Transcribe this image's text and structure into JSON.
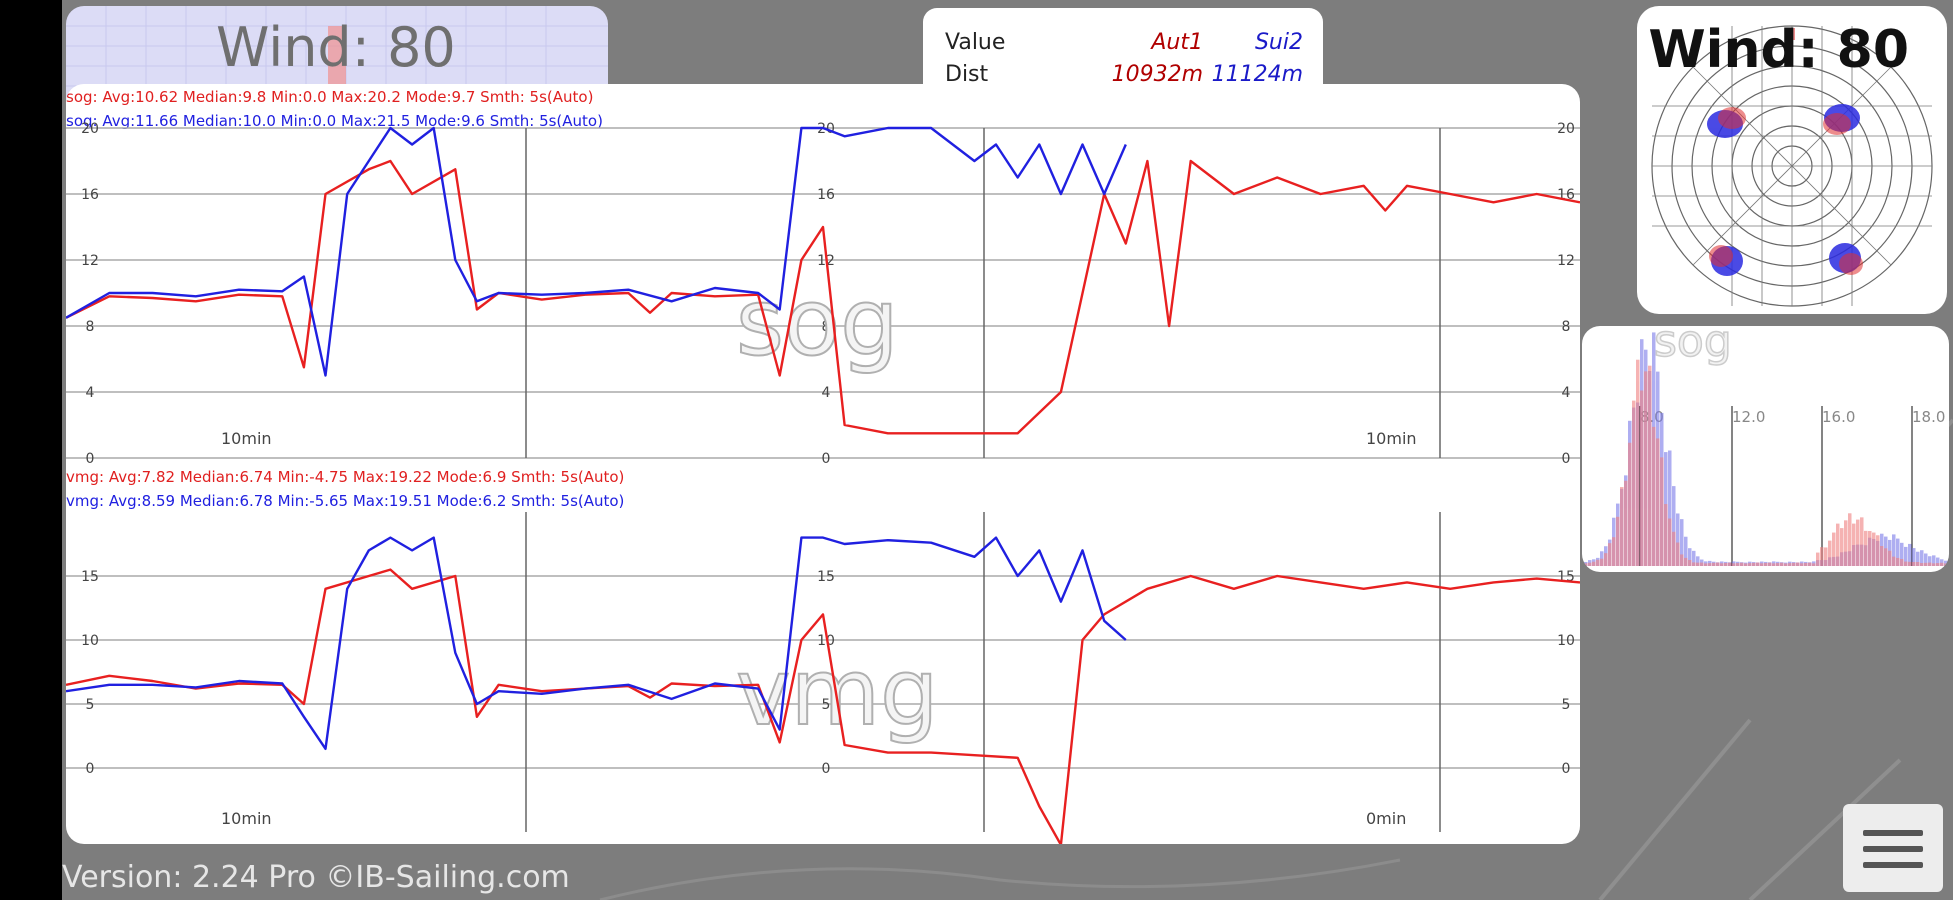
{
  "wind_panel": {
    "label": "Wind: 80"
  },
  "value_table": {
    "header": {
      "col0": "Value",
      "col1": "Aut1",
      "col2": "Sui2"
    },
    "row": {
      "col0": "Dist",
      "col1": "10932m",
      "col2": "11124m"
    }
  },
  "polar": {
    "title": "Wind: 80"
  },
  "histogram": {
    "watermark": "sog",
    "ticks": [
      "8.0",
      "12.0",
      "16.0",
      "18.0"
    ]
  },
  "sog_chart": {
    "watermark": "sog",
    "stats_red": "sog:  Avg:10.62 Median:9.8 Min:0.0 Max:20.2 Mode:9.7 Smth: 5s(Auto)",
    "stats_blue": "sog:  Avg:11.66 Median:10.0 Min:0.0 Max:21.5 Mode:9.6 Smth: 5s(Auto)",
    "y_ticks": [
      "20",
      "16",
      "12",
      "8",
      "4",
      "0"
    ],
    "time_label_left": "10min",
    "time_label_right": "10min"
  },
  "vmg_chart": {
    "watermark": "vmg",
    "stats_red": "vmg:  Avg:7.82 Median:6.74 Min:-4.75 Max:19.22 Mode:6.9 Smth: 5s(Auto)",
    "stats_blue": "vmg:  Avg:8.59 Median:6.78 Min:-5.65 Max:19.51 Mode:6.2 Smth: 5s(Auto)",
    "y_ticks": [
      "15",
      "10",
      "5",
      "0"
    ],
    "time_label_left": "10min",
    "time_label_right": "0min"
  },
  "footer": {
    "version": "Version: 2.24 Pro ©IB-Sailing.com"
  },
  "colors": {
    "series1": "#e82020",
    "series2": "#2020e0",
    "background": "#7d7d7d"
  },
  "icons": {
    "menu": "hamburger-menu-icon"
  },
  "chart_data": [
    {
      "type": "line",
      "x_unit": "min",
      "ylim": [
        0,
        20
      ],
      "series": [
        {
          "name": "Aut1",
          "color": "#e82020",
          "x": [
            0,
            2,
            4,
            6,
            8,
            10,
            11,
            12,
            14,
            15,
            16,
            18,
            19,
            20,
            22,
            24,
            26,
            27,
            28,
            30,
            32,
            33,
            34,
            35,
            36,
            38,
            40,
            42,
            44,
            46,
            48,
            49,
            50,
            51,
            52,
            53,
            54,
            56,
            58,
            60,
            61,
            62,
            64,
            66,
            68,
            70
          ],
          "y": [
            8.5,
            9.8,
            9.7,
            9.5,
            9.9,
            9.8,
            5.5,
            16,
            17.5,
            18,
            16,
            17.5,
            9,
            10,
            9.6,
            9.9,
            10,
            8.8,
            10,
            9.8,
            9.9,
            5,
            12,
            14,
            2,
            1.5,
            1.5,
            1.5,
            1.5,
            4,
            16,
            13,
            18,
            8,
            18,
            17,
            16,
            17,
            16,
            16.5,
            15,
            16.5,
            16,
            15.5,
            16,
            15.5
          ]
        },
        {
          "name": "Sui2",
          "color": "#2020e0",
          "x": [
            0,
            2,
            4,
            6,
            8,
            10,
            11,
            12,
            13,
            14,
            15,
            16,
            17,
            18,
            19,
            20,
            22,
            24,
            26,
            28,
            30,
            32,
            33,
            34,
            35,
            36,
            38,
            40,
            42,
            43,
            44,
            45,
            46,
            47,
            48,
            49
          ],
          "y": [
            8.5,
            10,
            10,
            9.8,
            10.2,
            10.1,
            11,
            5,
            16,
            18,
            20,
            19,
            20,
            12,
            9.5,
            10,
            9.9,
            10,
            10.2,
            9.5,
            10.3,
            10,
            9,
            20,
            20,
            19.5,
            20,
            20,
            18,
            19,
            17,
            19,
            16,
            19,
            16,
            19
          ]
        }
      ]
    },
    {
      "type": "line",
      "x_unit": "min",
      "ylim": [
        -5,
        20
      ],
      "series": [
        {
          "name": "Aut1",
          "color": "#e82020",
          "x": [
            0,
            2,
            4,
            6,
            8,
            10,
            11,
            12,
            14,
            15,
            16,
            18,
            19,
            20,
            22,
            24,
            26,
            27,
            28,
            30,
            32,
            33,
            34,
            35,
            36,
            38,
            40,
            42,
            44,
            45,
            46,
            47,
            48,
            50,
            52,
            54,
            56,
            58,
            60,
            62,
            64,
            66,
            68,
            70
          ],
          "y": [
            6.5,
            7.2,
            6.8,
            6.2,
            6.6,
            6.5,
            5,
            14,
            15,
            15.5,
            14,
            15,
            4,
            6.5,
            6,
            6.2,
            6.4,
            5.5,
            6.6,
            6.4,
            6.5,
            2,
            10,
            12,
            1.8,
            1.2,
            1.2,
            1,
            0.8,
            -3,
            -6,
            10,
            12,
            14,
            15,
            14,
            15,
            14.5,
            14,
            14.5,
            14,
            14.5,
            14.8,
            14.5
          ]
        },
        {
          "name": "Sui2",
          "color": "#2020e0",
          "x": [
            0,
            2,
            4,
            6,
            8,
            10,
            11,
            12,
            13,
            14,
            15,
            16,
            17,
            18,
            19,
            20,
            22,
            24,
            26,
            28,
            30,
            32,
            33,
            34,
            35,
            36,
            38,
            40,
            42,
            43,
            44,
            45,
            46,
            47,
            48,
            49
          ],
          "y": [
            6,
            6.5,
            6.5,
            6.3,
            6.8,
            6.6,
            4,
            1.5,
            14,
            17,
            18,
            17,
            18,
            9,
            5,
            6,
            5.8,
            6.2,
            6.5,
            5.4,
            6.6,
            6.2,
            3,
            18,
            18,
            17.5,
            17.8,
            17.6,
            16.5,
            18,
            15,
            17,
            13,
            17,
            11.5,
            10
          ]
        }
      ]
    }
  ]
}
